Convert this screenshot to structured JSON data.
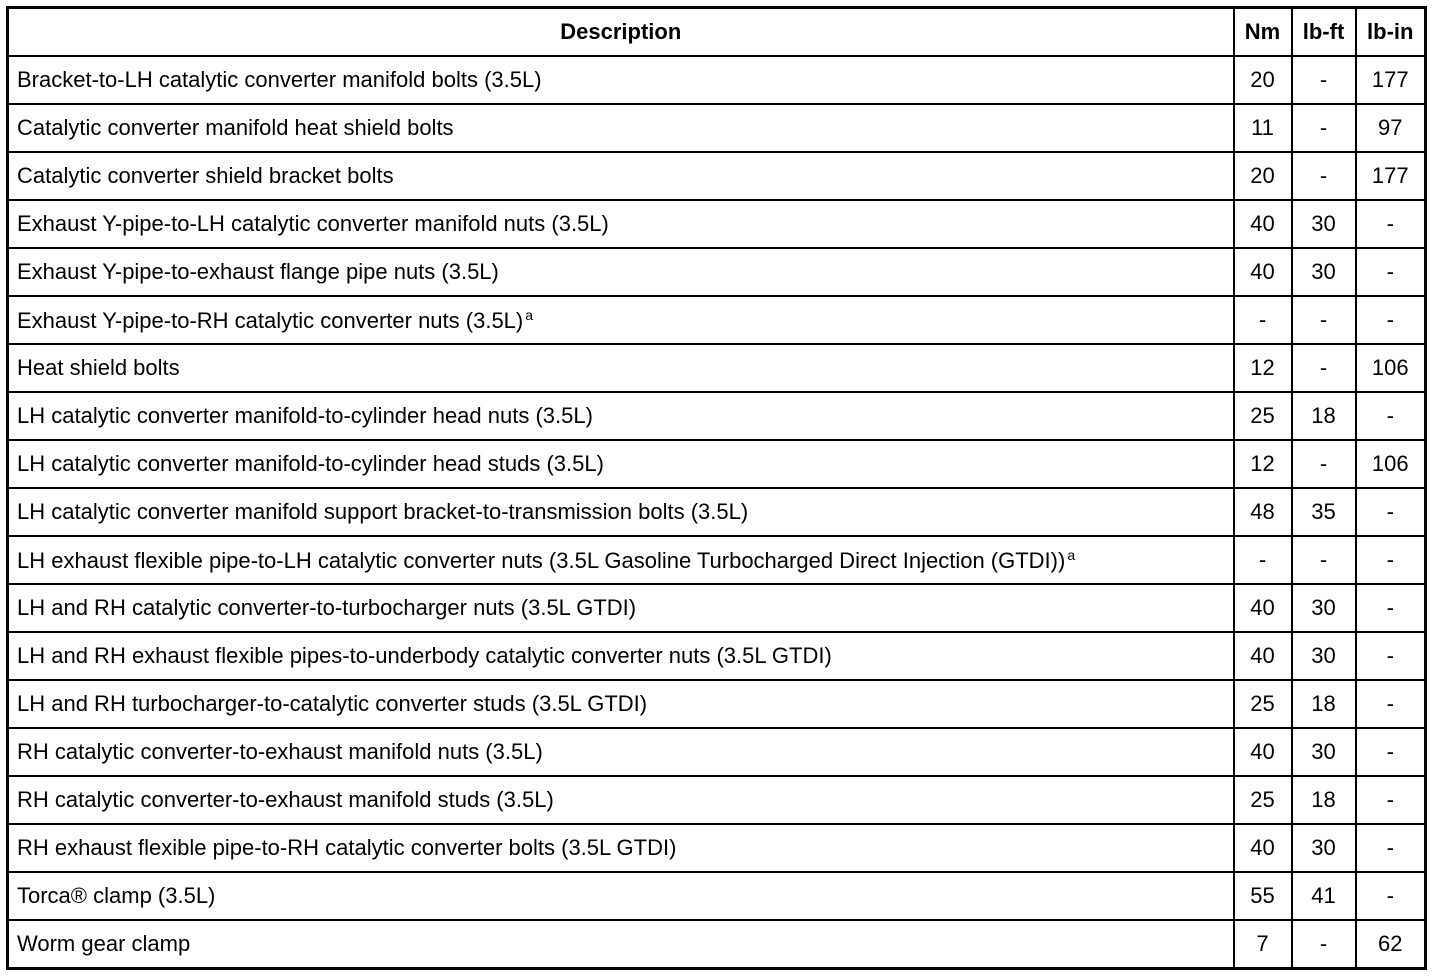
{
  "table": {
    "header": [
      "Description",
      "Nm",
      "lb-ft",
      "lb-in"
    ],
    "rows": [
      {
        "cells": [
          "Bracket-to-LH catalytic converter manifold bolts (3.5L)",
          "20",
          "-",
          "177"
        ]
      },
      {
        "cells": [
          "Catalytic converter manifold heat shield bolts",
          "11",
          "-",
          "97"
        ]
      },
      {
        "cells": [
          "Catalytic converter shield bracket bolts",
          "20",
          "-",
          "177"
        ]
      },
      {
        "cells": [
          "Exhaust Y-pipe-to-LH catalytic converter manifold nuts (3.5L)",
          "40",
          "30",
          "-"
        ]
      },
      {
        "cells": [
          "Exhaust Y-pipe-to-exhaust flange pipe nuts (3.5L)",
          "40",
          "30",
          "-"
        ]
      },
      {
        "cells": [
          "Exhaust Y-pipe-to-RH catalytic converter nuts (3.5L)",
          "-",
          "-",
          "-"
        ],
        "superscript": "a"
      },
      {
        "cells": [
          "Heat shield bolts",
          "12",
          "-",
          "106"
        ]
      },
      {
        "cells": [
          "LH catalytic converter manifold-to-cylinder head nuts (3.5L)",
          "25",
          "18",
          "-"
        ]
      },
      {
        "cells": [
          "LH catalytic converter manifold-to-cylinder head studs (3.5L)",
          "12",
          "-",
          "106"
        ]
      },
      {
        "cells": [
          "LH catalytic converter manifold support bracket-to-transmission bolts (3.5L)",
          "48",
          "35",
          "-"
        ]
      },
      {
        "cells": [
          "LH exhaust flexible pipe-to-LH catalytic converter nuts (3.5L Gasoline Turbocharged Direct Injection (GTDI))",
          "-",
          "-",
          "-"
        ],
        "superscript": "a"
      },
      {
        "cells": [
          "LH and RH catalytic converter-to-turbocharger nuts (3.5L GTDI)",
          "40",
          "30",
          "-"
        ]
      },
      {
        "cells": [
          "LH and RH exhaust flexible pipes-to-underbody catalytic converter nuts (3.5L GTDI)",
          "40",
          "30",
          "-"
        ]
      },
      {
        "cells": [
          "LH and RH turbocharger-to-catalytic converter studs (3.5L GTDI)",
          "25",
          "18",
          "-"
        ]
      },
      {
        "cells": [
          "RH catalytic converter-to-exhaust manifold nuts (3.5L)",
          "40",
          "30",
          "-"
        ]
      },
      {
        "cells": [
          "RH catalytic converter-to-exhaust manifold studs (3.5L)",
          "25",
          "18",
          "-"
        ]
      },
      {
        "cells": [
          "RH exhaust flexible pipe-to-RH catalytic converter bolts (3.5L GTDI)",
          "40",
          "30",
          "-"
        ]
      },
      {
        "cells": [
          "Torca® clamp (3.5L)",
          "55",
          "41",
          "-"
        ]
      },
      {
        "cells": [
          "Worm gear clamp",
          "7",
          "-",
          "62"
        ]
      }
    ]
  }
}
